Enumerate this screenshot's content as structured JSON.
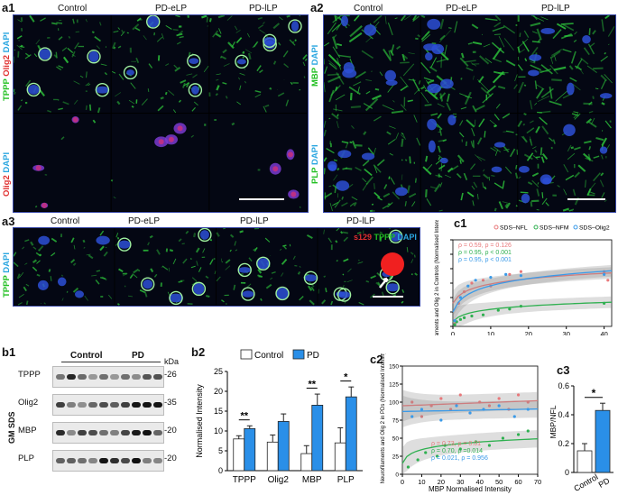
{
  "panels": {
    "a1": {
      "label": "a1",
      "headers": [
        "Control",
        "PD-eLP",
        "PD-lLP"
      ],
      "rows": [
        {
          "label_parts": [
            {
              "t": "TPPP ",
              "c": "g"
            },
            {
              "t": "Olig2 ",
              "c": "r"
            },
            {
              "t": "DAPI",
              "c": "b"
            }
          ]
        },
        {
          "label_parts": [
            {
              "t": "Olig2 ",
              "c": "r"
            },
            {
              "t": "DAPI",
              "c": "b"
            }
          ]
        }
      ]
    },
    "a2": {
      "label": "a2",
      "headers": [
        "Control",
        "PD-eLP",
        "PD-lLP"
      ],
      "rows": [
        {
          "label_parts": [
            {
              "t": "MBP ",
              "c": "g"
            },
            {
              "t": "DAPI",
              "c": "b"
            }
          ]
        },
        {
          "label_parts": [
            {
              "t": "PLP ",
              "c": "g"
            },
            {
              "t": "DAPI",
              "c": "b"
            }
          ]
        }
      ]
    },
    "a3": {
      "label": "a3",
      "headers": [
        "Control",
        "PD-eLP",
        "PD-lLP",
        "PD-lLP"
      ],
      "row_label_parts": [
        {
          "t": "TPPP ",
          "c": "g"
        },
        {
          "t": "DAPI",
          "c": "b"
        }
      ],
      "overlay_parts": [
        {
          "t": "s129 ",
          "c": "r"
        },
        {
          "t": "TPPP ",
          "c": "g"
        },
        {
          "t": "DAPI",
          "c": "b"
        }
      ]
    },
    "b1": {
      "label": "b1",
      "group_control": "Control",
      "group_pd": "PD",
      "kda": "kDa",
      "side_label": "GM SDS",
      "rows": [
        {
          "name": "TPPP",
          "kda": "-26"
        },
        {
          "name": "Olig2",
          "kda": "-35"
        },
        {
          "name": "MBP",
          "kda": "-20"
        },
        {
          "name": "PLP",
          "kda": "-20"
        }
      ]
    },
    "b2": {
      "label": "b2"
    },
    "c1": {
      "label": "c1"
    },
    "c2": {
      "label": "c2"
    },
    "c3": {
      "label": "c3"
    }
  },
  "chart_data": [
    {
      "id": "b2",
      "type": "bar",
      "categories": [
        "TPPP",
        "Olig2",
        "MBP",
        "PLP"
      ],
      "series": [
        {
          "name": "Control",
          "values": [
            8,
            7.2,
            4.3,
            7
          ],
          "errors": [
            0.8,
            1.8,
            2.0,
            3.8
          ],
          "color": "#ffffff"
        },
        {
          "name": "PD",
          "values": [
            10.6,
            12.4,
            16.5,
            18.6
          ],
          "errors": [
            0.7,
            1.9,
            2.8,
            2.5
          ],
          "color": "#2a8fe8"
        }
      ],
      "significance": [
        {
          "category": "TPPP",
          "text": "**"
        },
        {
          "category": "MBP",
          "text": "**"
        },
        {
          "category": "PLP",
          "text": "*"
        }
      ],
      "ylabel": "Normalised Intensity",
      "ylim": [
        0,
        25
      ],
      "yticks": [
        0,
        5,
        10,
        15,
        20,
        25
      ],
      "legend": "top"
    },
    {
      "id": "c1",
      "type": "scatter",
      "ylabel": "Neurofilaments and Olig 2 in Controls (Normalised Intensity)",
      "xlim": [
        0,
        42
      ],
      "ylim": [
        0,
        150
      ],
      "xticks": [
        0,
        10,
        20,
        30,
        40
      ],
      "yticks": [
        0,
        25,
        50,
        75,
        100,
        125,
        150
      ],
      "series": [
        {
          "name": "SDS–NFL",
          "color": "#e8787a",
          "stat": "ρ = 0.59, ρ = 0.126",
          "x": [
            0.5,
            1.5,
            3,
            5,
            8,
            10,
            15,
            18,
            40,
            41
          ],
          "y": [
            5,
            40,
            60,
            75,
            80,
            70,
            90,
            95,
            95,
            80
          ]
        },
        {
          "name": "SDS–NFM",
          "color": "#2fb050",
          "stat": "ρ = 0.95, ρ < 0.001",
          "x": [
            0.5,
            1,
            2,
            3,
            5,
            8,
            12,
            15,
            18,
            40
          ],
          "y": [
            3,
            8,
            12,
            15,
            18,
            20,
            28,
            30,
            35,
            40
          ]
        },
        {
          "name": "SDS–Olig2",
          "color": "#3a9ae8",
          "stat": "ρ = 0.95, ρ < 0.001",
          "x": [
            0.5,
            2,
            4,
            6,
            10,
            14,
            18,
            40
          ],
          "y": [
            10,
            50,
            70,
            80,
            85,
            90,
            88,
            90
          ]
        }
      ]
    },
    {
      "id": "c2",
      "type": "scatter",
      "xlabel": "MBP Normalised Intensity",
      "ylabel": "Neurofilaments and Olig 2 in PDs (Normalised Intensity)",
      "xlim": [
        0,
        70
      ],
      "ylim": [
        0,
        150
      ],
      "xticks": [
        0,
        10,
        20,
        30,
        40,
        50,
        60,
        70
      ],
      "yticks": [
        0,
        25,
        50,
        75,
        100,
        125,
        150
      ],
      "series": [
        {
          "name": "NFL",
          "color": "#e8787a",
          "stat": "ρ = 0.73, ρ = 0.01",
          "x": [
            5,
            10,
            15,
            20,
            25,
            30,
            35,
            40,
            45,
            50,
            55,
            60,
            65
          ],
          "y": [
            100,
            80,
            95,
            105,
            90,
            110,
            85,
            100,
            95,
            105,
            90,
            110,
            100
          ]
        },
        {
          "name": "NFM",
          "color": "#2fb050",
          "stat": "ρ = 0.70, ρ =0.014",
          "x": [
            3,
            8,
            12,
            18,
            22,
            30,
            38,
            45,
            52,
            60,
            65
          ],
          "y": [
            10,
            20,
            30,
            25,
            40,
            35,
            45,
            40,
            50,
            55,
            60
          ]
        },
        {
          "name": "Olig2",
          "color": "#3a9ae8",
          "stat": "ρ = 0.021, ρ = 0.956",
          "x": [
            5,
            10,
            20,
            28,
            35,
            42,
            50,
            58,
            65
          ],
          "y": [
            80,
            90,
            75,
            95,
            85,
            90,
            95,
            80,
            90
          ]
        }
      ]
    },
    {
      "id": "c3",
      "type": "bar",
      "categories": [
        "Control",
        "PD"
      ],
      "values": [
        0.15,
        0.43
      ],
      "errors": [
        0.05,
        0.05
      ],
      "colors": [
        "#ffffff",
        "#2a8fe8"
      ],
      "significance": "*",
      "ylabel": "MBP/NFL",
      "ylim": [
        0,
        0.6
      ],
      "yticks": [
        0,
        0.2,
        0.4,
        0.6
      ]
    }
  ]
}
